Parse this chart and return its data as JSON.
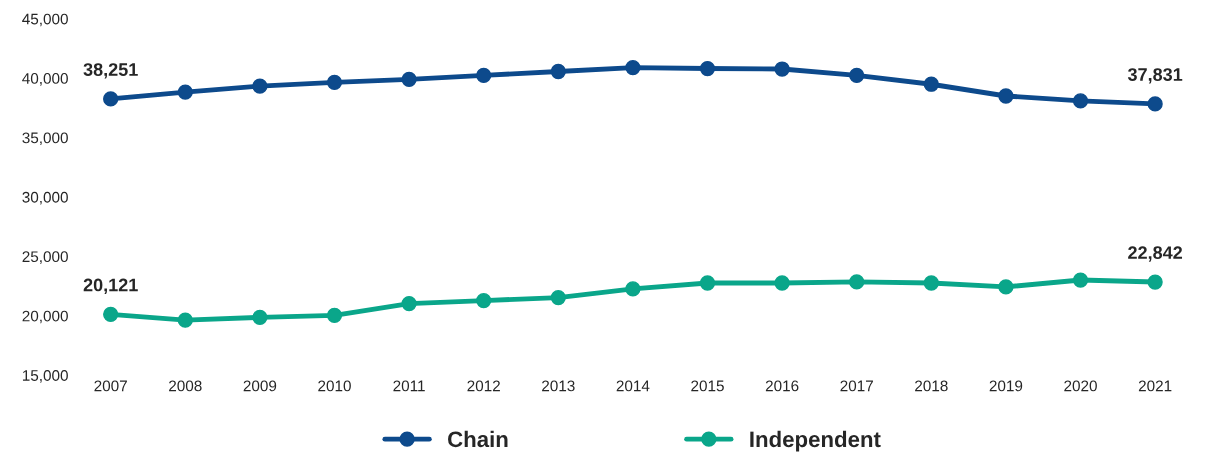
{
  "chart_data": {
    "type": "line",
    "categories": [
      "2007",
      "2008",
      "2009",
      "2010",
      "2011",
      "2012",
      "2013",
      "2014",
      "2015",
      "2016",
      "2017",
      "2018",
      "2019",
      "2020",
      "2021"
    ],
    "series": [
      {
        "name": "Chain",
        "color": "#0d4a8c",
        "values": [
          38251,
          38830,
          39330,
          39650,
          39900,
          40230,
          40560,
          40890,
          40810,
          40770,
          40230,
          39490,
          38500,
          38090,
          37831
        ],
        "value_labels": [
          "38,251",
          null,
          null,
          null,
          null,
          null,
          null,
          null,
          null,
          null,
          null,
          null,
          null,
          null,
          "37,831"
        ]
      },
      {
        "name": "Independent",
        "color": "#0aa68a",
        "values": [
          20121,
          19630,
          19870,
          20040,
          21030,
          21280,
          21530,
          22270,
          22760,
          22760,
          22850,
          22760,
          22430,
          23010,
          22842
        ],
        "value_labels": [
          "20,121",
          null,
          null,
          null,
          null,
          null,
          null,
          null,
          null,
          null,
          null,
          null,
          null,
          null,
          "22,842"
        ]
      }
    ],
    "ylim": [
      15000,
      45000
    ],
    "yticks": [
      {
        "value": 15000,
        "label": "15,000"
      },
      {
        "value": 20000,
        "label": "20,000"
      },
      {
        "value": 25000,
        "label": "25,000"
      },
      {
        "value": 30000,
        "label": "30,000"
      },
      {
        "value": 35000,
        "label": "35,000"
      },
      {
        "value": 40000,
        "label": "40,000"
      },
      {
        "value": 45000,
        "label": "45,000"
      }
    ],
    "grid": false,
    "legend": "bottom",
    "marker": "circle",
    "line_style": "solid"
  }
}
